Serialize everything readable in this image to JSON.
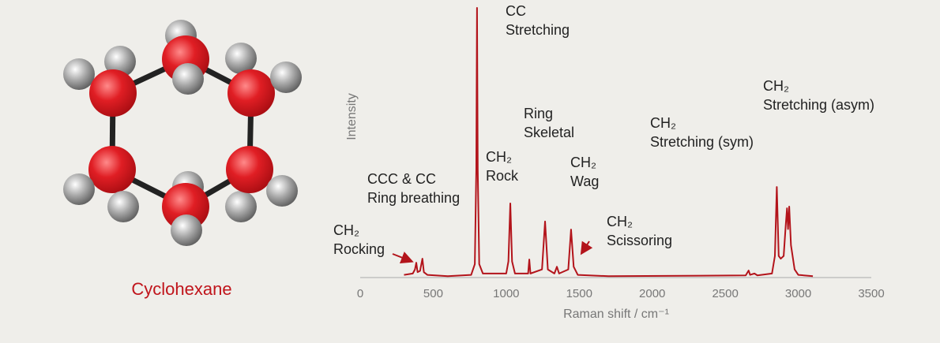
{
  "molecule_label": "Cyclohexane",
  "chart_data": {
    "type": "line",
    "x_label": "Raman shift / cm⁻¹",
    "y_label": "Intensity",
    "xlim": [
      0,
      3500
    ],
    "xticks": [
      0,
      500,
      1000,
      1500,
      2000,
      2500,
      3000,
      3500
    ],
    "ylim": [
      0,
      100
    ],
    "grid": false,
    "series": [
      {
        "name": "Cyclohexane",
        "color": "#b3141b",
        "x": [
          300,
          360,
          375,
          384,
          393,
          410,
          426,
          436,
          460,
          600,
          760,
          785,
          795,
          800,
          805,
          815,
          840,
          1000,
          1015,
          1028,
          1040,
          1060,
          1150,
          1158,
          1166,
          1245,
          1266,
          1285,
          1330,
          1347,
          1362,
          1425,
          1444,
          1462,
          1490,
          1700,
          2640,
          2660,
          2670,
          2700,
          2720,
          2820,
          2840,
          2853,
          2866,
          2880,
          2900,
          2915,
          2923,
          2930,
          2938,
          2950,
          2975,
          3000,
          3100
        ],
        "values": [
          1,
          1.5,
          3,
          5.5,
          2,
          2.5,
          7,
          2,
          1,
          0.5,
          1,
          5,
          40,
          100,
          40,
          5,
          1.5,
          1.5,
          6,
          27.5,
          6,
          1.5,
          1.5,
          6.7,
          1.5,
          3,
          20.8,
          3,
          1.5,
          4,
          1.5,
          3,
          17.8,
          4,
          1,
          0.5,
          0.8,
          2.6,
          1,
          1.5,
          0.8,
          1.5,
          8,
          33.6,
          8,
          7,
          8,
          20,
          25.7,
          18,
          26.3,
          12,
          3,
          1,
          0.5
        ]
      }
    ],
    "annotations": [
      {
        "lines": [
          "CH₂",
          "Rocking"
        ]
      },
      {
        "lines": [
          "CCC & CC",
          "Ring breathing"
        ]
      },
      {
        "lines": [
          "CC",
          "Stretching"
        ]
      },
      {
        "lines": [
          "CH₂",
          "Rock"
        ]
      },
      {
        "lines": [
          "Ring",
          "Skeletal"
        ]
      },
      {
        "lines": [
          "CH₂",
          "Wag"
        ]
      },
      {
        "lines": [
          "CH₂",
          "Scissoring"
        ]
      },
      {
        "lines": [
          "CH₂",
          "Stretching (sym)"
        ]
      },
      {
        "lines": [
          "CH₂",
          "Stretching (asym)"
        ]
      }
    ]
  }
}
